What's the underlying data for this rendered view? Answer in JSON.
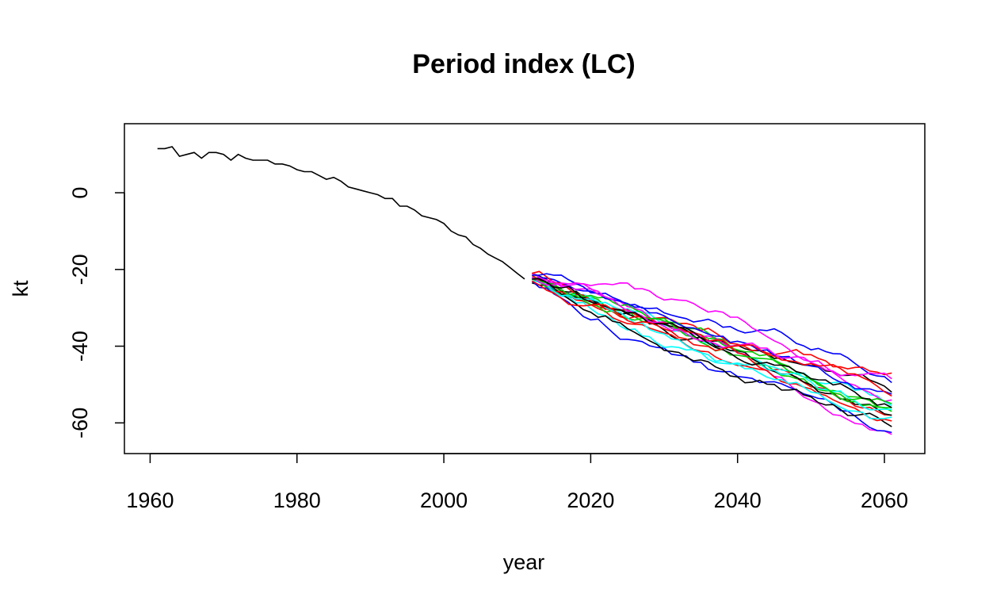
{
  "chart_data": {
    "type": "line",
    "title": "Period index (LC)",
    "xlabel": "year",
    "ylabel": "kt",
    "xlim": [
      1956.5,
      2065.5
    ],
    "ylim": [
      -68,
      18
    ],
    "x_ticks": [
      1960,
      1980,
      2000,
      2020,
      2040,
      2060
    ],
    "y_ticks": [
      0,
      -20,
      -40,
      -60
    ],
    "x_tick_labels": [
      "1960",
      "1980",
      "2000",
      "2020",
      "2040",
      "2060"
    ],
    "y_tick_labels": [
      "0",
      "-20",
      "-40",
      "-60"
    ],
    "grid": false,
    "legend": "none",
    "historical": {
      "color": "#000000",
      "x": [
        1961,
        1962,
        1963,
        1964,
        1965,
        1966,
        1967,
        1968,
        1969,
        1970,
        1971,
        1972,
        1973,
        1974,
        1975,
        1976,
        1977,
        1978,
        1979,
        1980,
        1981,
        1982,
        1983,
        1984,
        1985,
        1986,
        1987,
        1988,
        1989,
        1990,
        1991,
        1992,
        1993,
        1994,
        1995,
        1996,
        1997,
        1998,
        1999,
        2000,
        2001,
        2002,
        2003,
        2004,
        2005,
        2006,
        2007,
        2008,
        2009,
        2010,
        2011
      ],
      "y": [
        11.5,
        11.5,
        12.0,
        9.5,
        10.0,
        10.5,
        9.0,
        10.5,
        10.5,
        10.0,
        8.5,
        10.0,
        9.0,
        8.5,
        8.5,
        8.5,
        7.5,
        7.5,
        7.0,
        6.0,
        5.5,
        5.5,
        4.5,
        3.5,
        4.0,
        3.0,
        1.5,
        1.0,
        0.5,
        0.0,
        -0.5,
        -1.5,
        -1.5,
        -3.5,
        -3.5,
        -4.5,
        -6.0,
        -6.5,
        -7.0,
        -8.0,
        -10.0,
        -11.0,
        -11.5,
        -13.5,
        -14.5,
        -16.0,
        -17.0,
        -18.0,
        -19.5,
        -21.0,
        -22.5
      ]
    },
    "forecast": {
      "start_year": 2012,
      "end_year": 2061,
      "series": [
        {
          "color": "#000000",
          "start": -21.0,
          "end": -52.0
        },
        {
          "color": "#ff0000",
          "start": -22.0,
          "end": -58.0
        },
        {
          "color": "#00cd00",
          "start": -21.5,
          "end": -56.0
        },
        {
          "color": "#0000ff",
          "start": -22.5,
          "end": -49.5
        },
        {
          "color": "#00ffff",
          "start": -22.0,
          "end": -55.5
        },
        {
          "color": "#ff00ff",
          "start": -21.0,
          "end": -63.0
        },
        {
          "color": "#000000",
          "start": -23.5,
          "end": -58.0
        },
        {
          "color": "#ff0000",
          "start": -21.0,
          "end": -47.0
        },
        {
          "color": "#00cd00",
          "start": -22.5,
          "end": -57.0
        },
        {
          "color": "#0000ff",
          "start": -23.0,
          "end": -62.5
        },
        {
          "color": "#00ffff",
          "start": -22.0,
          "end": -56.5
        },
        {
          "color": "#ff00ff",
          "start": -22.5,
          "end": -54.0
        },
        {
          "color": "#000000",
          "start": -22.0,
          "end": -61.0
        },
        {
          "color": "#ff0000",
          "start": -21.5,
          "end": -59.5
        },
        {
          "color": "#00cd00",
          "start": -22.0,
          "end": -55.0
        },
        {
          "color": "#0000ff",
          "start": -21.5,
          "end": -52.5
        },
        {
          "color": "#00ffff",
          "start": -23.0,
          "end": -58.5
        },
        {
          "color": "#ff00ff",
          "start": -22.0,
          "end": -48.5
        },
        {
          "color": "#000000",
          "start": -22.5,
          "end": -56.0
        },
        {
          "color": "#ff0000",
          "start": -23.0,
          "end": -53.0
        }
      ]
    }
  }
}
